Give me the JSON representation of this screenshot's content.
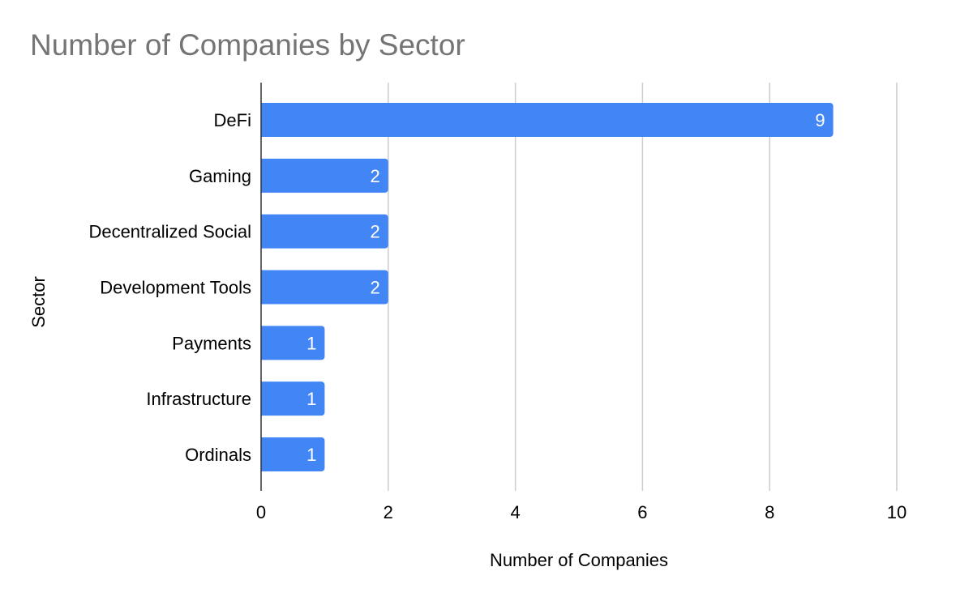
{
  "chart_data": {
    "type": "bar",
    "orientation": "horizontal",
    "title": "Number of Companies by Sector",
    "xlabel": "Number of Companies",
    "ylabel": "Sector",
    "categories": [
      "DeFi",
      "Gaming",
      "Decentralized Social",
      "Development Tools",
      "Payments",
      "Infrastructure",
      "Ordinals"
    ],
    "values": [
      9,
      2,
      2,
      2,
      1,
      1,
      1
    ],
    "data_labels": [
      "9",
      "2",
      "2",
      "2",
      "1",
      "1",
      "1"
    ],
    "xlim": [
      0,
      10
    ],
    "x_ticks": [
      0,
      2,
      4,
      6,
      8,
      10
    ],
    "x_tick_labels": [
      "0",
      "2",
      "4",
      "6",
      "8",
      "10"
    ],
    "grid": true,
    "legend": "none",
    "bar_color": "#4285f4",
    "gridline_color": "#cccccc",
    "axis_color": "#333333",
    "title_color": "#757575"
  }
}
